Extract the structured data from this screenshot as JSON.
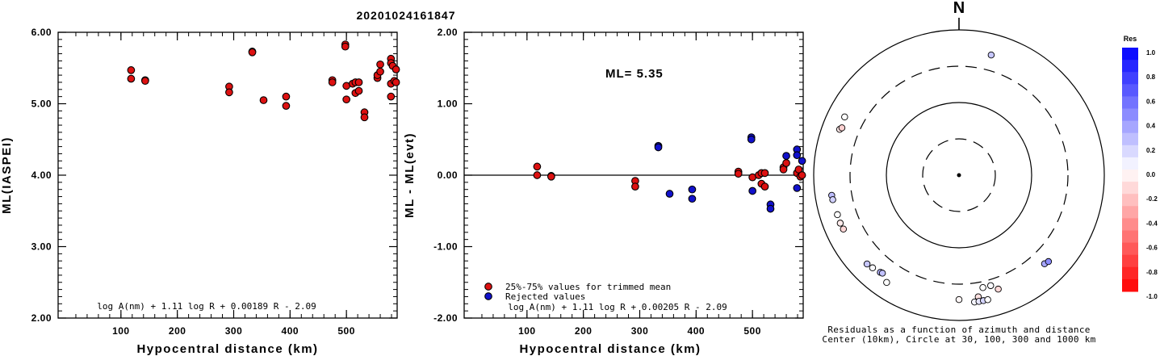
{
  "event_title": "20201024161847",
  "chart_data": [
    {
      "type": "scatter",
      "title": "",
      "xlabel": "Hypocentral distance (km)",
      "ylabel": "ML(IASPEI)",
      "xlim": [
        0,
        590
      ],
      "ylim": [
        2.0,
        6.0
      ],
      "xticks": [
        "100",
        "200",
        "300",
        "400",
        "500"
      ],
      "yticks": [
        "6.00",
        "5.00",
        "4.00",
        "3.00",
        "2.00"
      ],
      "annotation": "log A(nm) + 1.11 log R + 0.00189 R - 2.09",
      "series": [
        {
          "color": "#dd1111",
          "points": [
            [
              118,
              5.47
            ],
            [
              118,
              5.35
            ],
            [
              143,
              5.33
            ],
            [
              143,
              5.32
            ],
            [
              292,
              5.24
            ],
            [
              292,
              5.16
            ],
            [
              333,
              5.73
            ],
            [
              333,
              5.72
            ],
            [
              353,
              5.05
            ],
            [
              393,
              5.1
            ],
            [
              393,
              4.97
            ],
            [
              475,
              5.33
            ],
            [
              475,
              5.3
            ],
            [
              498,
              5.83
            ],
            [
              498,
              5.8
            ],
            [
              500,
              5.06
            ],
            [
              500,
              5.25
            ],
            [
              511,
              5.28
            ],
            [
              516,
              5.3
            ],
            [
              516,
              5.15
            ],
            [
              522,
              5.18
            ],
            [
              522,
              5.3
            ],
            [
              532,
              4.88
            ],
            [
              532,
              4.81
            ],
            [
              555,
              5.36
            ],
            [
              555,
              5.4
            ],
            [
              560,
              5.55
            ],
            [
              560,
              5.45
            ],
            [
              579,
              5.63
            ],
            [
              579,
              5.57
            ],
            [
              579,
              5.28
            ],
            [
              579,
              5.1
            ],
            [
              582,
              5.53
            ],
            [
              585,
              5.32
            ],
            [
              588,
              5.3
            ],
            [
              588,
              5.48
            ]
          ]
        }
      ]
    },
    {
      "type": "scatter",
      "title": "",
      "xlabel": "Hypocentral distance (km)",
      "ylabel": "ML - ML(evt)",
      "xlim": [
        0,
        590
      ],
      "ylim": [
        -2.0,
        2.0
      ],
      "xticks": [
        "100",
        "200",
        "300",
        "400",
        "500"
      ],
      "yticks": [
        "2.00",
        "1.00",
        "0.00",
        "-1.00",
        "-2.00"
      ],
      "ml_label": "ML= 5.35",
      "annotation": "log A(nm) + 1.11 log R + 0.00205 R - 2.09",
      "series": [
        {
          "name": "25%-75% values for trimmed mean",
          "color": "#dd1111",
          "points": [
            [
              118,
              0.12
            ],
            [
              118,
              0.0
            ],
            [
              143,
              -0.01
            ],
            [
              143,
              -0.02
            ],
            [
              292,
              -0.08
            ],
            [
              292,
              -0.16
            ],
            [
              475,
              0.05
            ],
            [
              475,
              0.02
            ],
            [
              500,
              -0.03
            ],
            [
              511,
              0.0
            ],
            [
              516,
              -0.12
            ],
            [
              516,
              0.03
            ],
            [
              522,
              -0.16
            ],
            [
              522,
              0.03
            ],
            [
              555,
              0.11
            ],
            [
              555,
              0.08
            ],
            [
              560,
              0.17
            ],
            [
              579,
              0.03
            ],
            [
              582,
              0.08
            ],
            [
              585,
              -0.02
            ],
            [
              588,
              0.0
            ]
          ]
        },
        {
          "name": "Rejected values",
          "color": "#1111cc",
          "points": [
            [
              333,
              0.41
            ],
            [
              333,
              0.39
            ],
            [
              353,
              -0.26
            ],
            [
              393,
              -0.2
            ],
            [
              393,
              -0.33
            ],
            [
              498,
              0.53
            ],
            [
              498,
              0.5
            ],
            [
              500,
              -0.22
            ],
            [
              532,
              -0.41
            ],
            [
              532,
              -0.47
            ],
            [
              560,
              0.27
            ],
            [
              579,
              0.36
            ],
            [
              579,
              0.28
            ],
            [
              579,
              -0.18
            ],
            [
              588,
              0.2
            ]
          ]
        }
      ]
    },
    {
      "type": "scatter",
      "title": "",
      "north_label": "N",
      "caption_line1": "Residuals as a function of azimuth and distance",
      "caption_line2": "Center (10km), Circle at 30, 100, 300 and 1000 km",
      "colorbar_title": "Res",
      "colorbar_ticks": [
        "1.0",
        "0.8",
        "0.6",
        "0.4",
        "0.2",
        "0.0",
        "-0.2",
        "-0.4",
        "-0.6",
        "-0.8",
        "-1.0"
      ],
      "stations": [
        {
          "azimuth": 15,
          "distance_km": 500,
          "residual": 0.22
        },
        {
          "azimuth": 291,
          "distance_km": 560,
          "residual": -0.1
        },
        {
          "azimuth": 292,
          "distance_km": 532,
          "residual": -0.18
        },
        {
          "azimuth": 297,
          "distance_km": 570,
          "residual": 0.0
        },
        {
          "azimuth": 261,
          "distance_km": 580,
          "residual": 0.26
        },
        {
          "azimuth": 259,
          "distance_km": 575,
          "residual": 0.18
        },
        {
          "azimuth": 252,
          "distance_km": 560,
          "residual": 0.0
        },
        {
          "azimuth": 248,
          "distance_km": 565,
          "residual": -0.08
        },
        {
          "azimuth": 245,
          "distance_km": 555,
          "residual": -0.16
        },
        {
          "azimuth": 226,
          "distance_km": 560,
          "residual": 0.22
        },
        {
          "azimuth": 223,
          "distance_km": 540,
          "residual": 0.02
        },
        {
          "azimuth": 219,
          "distance_km": 510,
          "residual": 0.3
        },
        {
          "azimuth": 218,
          "distance_km": 500,
          "residual": 0.24
        },
        {
          "azimuth": 214,
          "distance_km": 590,
          "residual": 0.0
        },
        {
          "azimuth": 168,
          "distance_km": 365,
          "residual": 0.0
        },
        {
          "azimuth": 164,
          "distance_km": 365,
          "residual": 0.02
        },
        {
          "azimuth": 180,
          "distance_km": 500,
          "residual": -0.03
        },
        {
          "azimuth": 171,
          "distance_km": 480,
          "residual": -0.12
        },
        {
          "azimuth": 161,
          "distance_km": 440,
          "residual": -0.15
        },
        {
          "azimuth": 173,
          "distance_km": 560,
          "residual": 0.04
        },
        {
          "azimuth": 171,
          "distance_km": 560,
          "residual": 0.1
        },
        {
          "azimuth": 169,
          "distance_km": 560,
          "residual": 0.16
        },
        {
          "azimuth": 167,
          "distance_km": 560,
          "residual": 0.0
        },
        {
          "azimuth": 136,
          "distance_km": 480,
          "residual": 0.35
        },
        {
          "azimuth": 134,
          "distance_km": 500,
          "residual": 0.45
        }
      ]
    }
  ]
}
